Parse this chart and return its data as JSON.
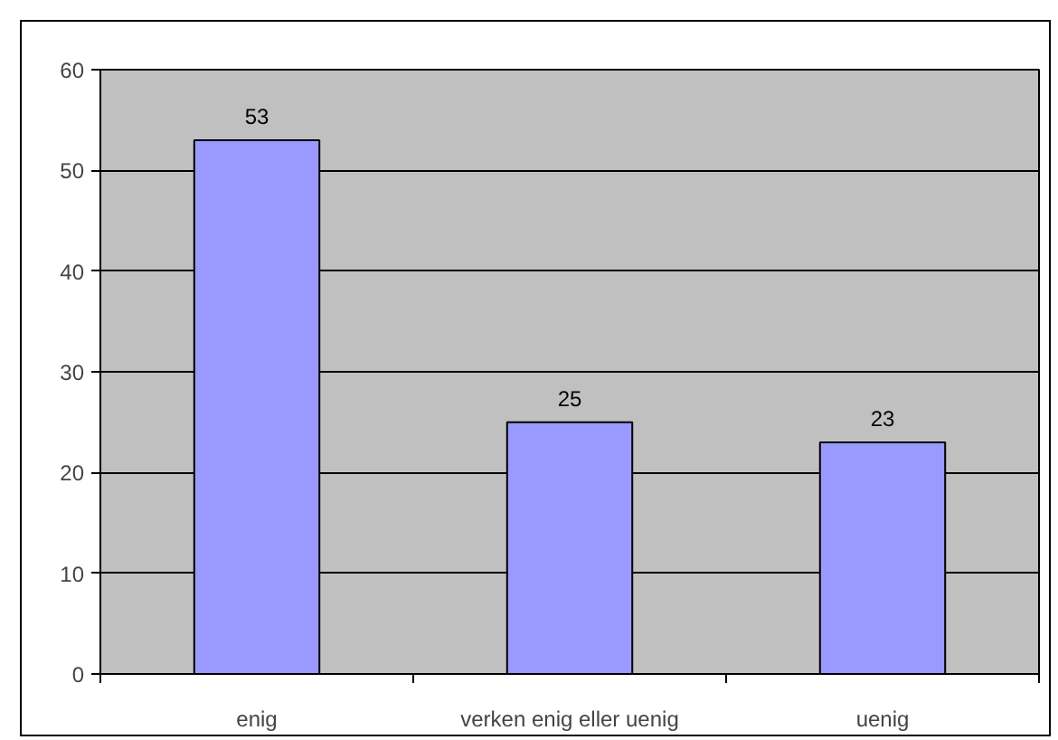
{
  "chart_data": {
    "type": "bar",
    "categories": [
      "enig",
      "verken enig eller uenig",
      "uenig"
    ],
    "values": [
      53,
      25,
      23
    ],
    "color": "#9999ff",
    "ylim": [
      0,
      60
    ],
    "yticks": [
      0,
      10,
      20,
      30,
      40,
      50,
      60
    ],
    "grid": "y",
    "data_labels": true
  }
}
